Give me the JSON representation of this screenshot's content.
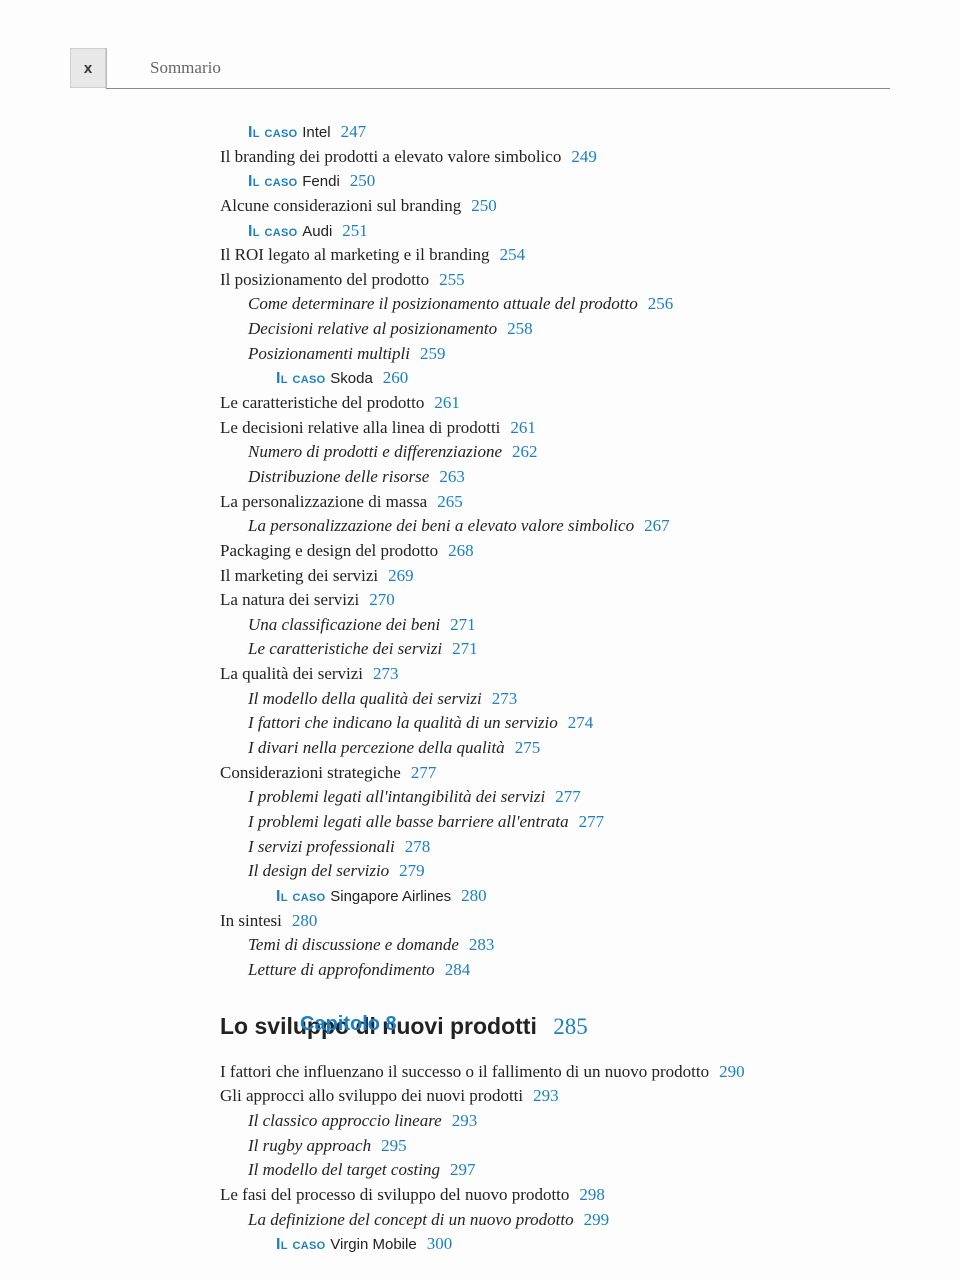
{
  "header": {
    "page_marker": "x",
    "running_head": "Sommario"
  },
  "colors": {
    "accent": "#1a7fc4",
    "text": "#222222",
    "muted": "#666666",
    "tab_bg": "#e8e8e8"
  },
  "entries": [
    {
      "level": 1,
      "type": "caso",
      "label": "Il caso",
      "name": "Intel",
      "page": "247"
    },
    {
      "level": 0,
      "type": "plain",
      "text": "Il branding dei prodotti a elevato valore simbolico",
      "page": "249"
    },
    {
      "level": 1,
      "type": "caso",
      "label": "Il caso",
      "name": "Fendi",
      "page": "250"
    },
    {
      "level": 0,
      "type": "plain",
      "text": "Alcune considerazioni sul branding",
      "page": "250"
    },
    {
      "level": 1,
      "type": "caso",
      "label": "Il caso",
      "name": "Audi",
      "page": "251"
    },
    {
      "level": 0,
      "type": "plain",
      "text": "Il ROI legato al marketing e il branding",
      "page": "254"
    },
    {
      "level": 0,
      "type": "plain",
      "text": "Il posizionamento del prodotto",
      "page": "255"
    },
    {
      "level": 1,
      "type": "italic",
      "text": "Come determinare il posizionamento attuale del prodotto",
      "page": "256"
    },
    {
      "level": 1,
      "type": "italic",
      "text": "Decisioni relative al posizionamento",
      "page": "258"
    },
    {
      "level": 1,
      "type": "italic",
      "text": "Posizionamenti multipli",
      "page": "259"
    },
    {
      "level": 2,
      "type": "caso",
      "label": "Il caso",
      "name": "Skoda",
      "page": "260"
    },
    {
      "level": 0,
      "type": "plain",
      "text": "Le caratteristiche del prodotto",
      "page": "261"
    },
    {
      "level": 0,
      "type": "plain",
      "text": "Le decisioni relative alla linea di prodotti",
      "page": "261"
    },
    {
      "level": 1,
      "type": "italic",
      "text": "Numero di prodotti e differenziazione",
      "page": "262"
    },
    {
      "level": 1,
      "type": "italic",
      "text": "Distribuzione delle risorse",
      "page": "263"
    },
    {
      "level": 0,
      "type": "plain",
      "text": "La personalizzazione di massa",
      "page": "265"
    },
    {
      "level": 1,
      "type": "italic",
      "text": "La personalizzazione dei beni a elevato valore simbolico",
      "page": "267"
    },
    {
      "level": 0,
      "type": "plain",
      "text": "Packaging e design del prodotto",
      "page": "268"
    },
    {
      "level": 0,
      "type": "plain",
      "text": "Il marketing dei servizi",
      "page": "269"
    },
    {
      "level": 0,
      "type": "plain",
      "text": "La natura dei servizi",
      "page": "270"
    },
    {
      "level": 1,
      "type": "italic",
      "text": "Una classificazione dei beni",
      "page": "271"
    },
    {
      "level": 1,
      "type": "italic",
      "text": "Le caratteristiche dei servizi",
      "page": "271"
    },
    {
      "level": 0,
      "type": "plain",
      "text": "La qualità dei servizi",
      "page": "273"
    },
    {
      "level": 1,
      "type": "italic",
      "text": "Il modello della qualità dei servizi",
      "page": "273"
    },
    {
      "level": 1,
      "type": "italic",
      "text": "I fattori che indicano la qualità di un servizio",
      "page": "274"
    },
    {
      "level": 1,
      "type": "italic",
      "text": "I divari nella percezione della qualità",
      "page": "275"
    },
    {
      "level": 0,
      "type": "plain",
      "text": "Considerazioni strategiche",
      "page": "277"
    },
    {
      "level": 1,
      "type": "italic",
      "text": "I problemi legati all'intangibilità dei servizi",
      "page": "277"
    },
    {
      "level": 1,
      "type": "italic",
      "text": "I problemi legati alle basse barriere all'entrata",
      "page": "277"
    },
    {
      "level": 1,
      "type": "italic",
      "text": "I servizi professionali",
      "page": "278"
    },
    {
      "level": 1,
      "type": "italic",
      "text": "Il design del servizio",
      "page": "279"
    },
    {
      "level": 2,
      "type": "caso",
      "label": "Il caso",
      "name": "Singapore Airlines",
      "page": "280"
    },
    {
      "level": 0,
      "type": "plain",
      "text": "In sintesi",
      "page": "280"
    },
    {
      "level": 1,
      "type": "italic",
      "text": "Temi di discussione e domande",
      "page": "283"
    },
    {
      "level": 1,
      "type": "italic",
      "text": "Letture di approfondimento",
      "page": "284"
    }
  ],
  "chapter": {
    "label": "Capitolo 8",
    "title": "Lo sviluppo di nuovi prodotti",
    "page": "285"
  },
  "chapter_entries": [
    {
      "level": 0,
      "type": "plain-hang",
      "text": "I fattori che influenzano il successo o il fallimento di un nuovo prodotto",
      "page": "290"
    },
    {
      "level": 0,
      "type": "plain",
      "text": "Gli approcci allo sviluppo dei nuovi prodotti",
      "page": "293"
    },
    {
      "level": 1,
      "type": "italic",
      "text": "Il classico approccio lineare",
      "page": "293"
    },
    {
      "level": 1,
      "type": "italic",
      "text": "Il rugby approach",
      "page": "295"
    },
    {
      "level": 1,
      "type": "italic",
      "text": "Il modello del target costing",
      "page": "297"
    },
    {
      "level": 0,
      "type": "plain",
      "text": "Le fasi del processo di sviluppo del nuovo prodotto",
      "page": "298"
    },
    {
      "level": 1,
      "type": "italic",
      "text": "La definizione del concept di un nuovo prodotto",
      "page": "299"
    },
    {
      "level": 2,
      "type": "caso",
      "label": "Il caso",
      "name": "Virgin Mobile",
      "page": "300"
    }
  ]
}
